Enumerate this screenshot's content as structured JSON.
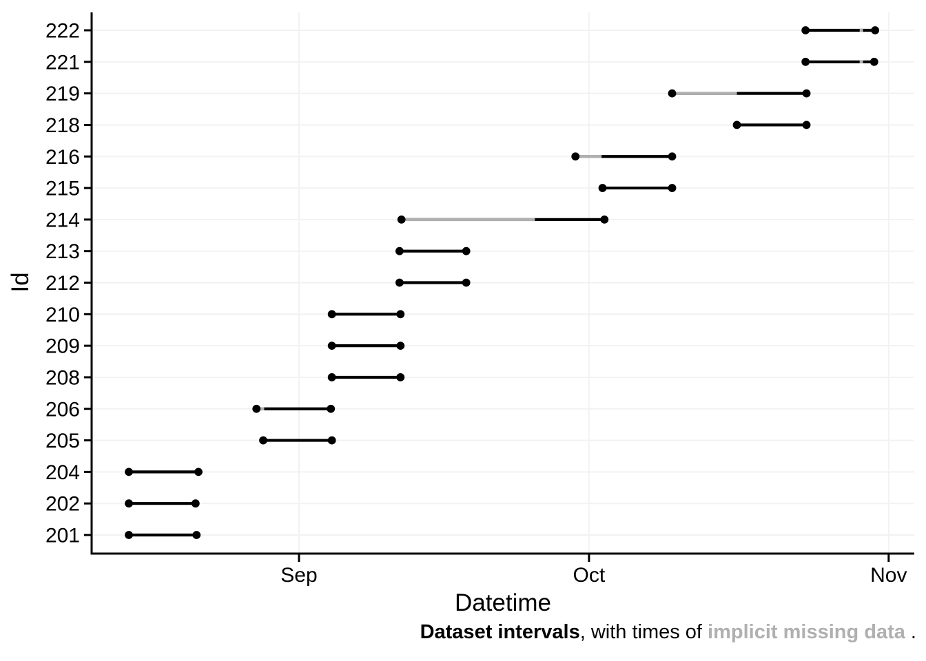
{
  "figure": {
    "xlabel": "Datetime",
    "ylabel": "Id",
    "caption": {
      "part1_bold": "Dataset intervals",
      "part2": ", with times of ",
      "part3_gray_bold": "implicit missing data",
      "part4": " ."
    }
  },
  "colors": {
    "interval": "#000000",
    "missing": "#b0b0b0",
    "gridline": "#f2f2f2",
    "axis": "#000000",
    "tick_text": "#000000",
    "background": "#ffffff",
    "caption_gray": "#b0b0b0"
  },
  "chart_data": {
    "type": "interval-range",
    "description": "Horizontal interval segments per dataset Id over time; black = data present, gray = implicit missing data; dots mark interval endpoints.",
    "title": "",
    "xlabel": "Datetime",
    "ylabel": "Id",
    "grid": "major gridlines only, very light gray on white panel",
    "legend": "none",
    "epoch_note": "day 0 = Aug 1",
    "x_domain_days": [
      9.55,
      94.65
    ],
    "x_ticks": [
      {
        "label": "Sep",
        "day": 31
      },
      {
        "label": "Oct",
        "day": 61
      },
      {
        "label": "Nov",
        "day": 92
      }
    ],
    "y_categories": [
      "222",
      "221",
      "219",
      "218",
      "216",
      "215",
      "214",
      "213",
      "212",
      "210",
      "209",
      "208",
      "206",
      "205",
      "204",
      "202",
      "201"
    ],
    "intervals": [
      {
        "id": "222",
        "start_day": 83.4,
        "end_day": 90.6,
        "start_date": "Oct 23",
        "end_date": "Oct 31",
        "missing_days": [
          [
            89.0,
            89.35
          ]
        ]
      },
      {
        "id": "221",
        "start_day": 83.4,
        "end_day": 90.5,
        "start_date": "Oct 23",
        "end_date": "Oct 31",
        "missing_days": [
          [
            89.0,
            89.35
          ]
        ]
      },
      {
        "id": "219",
        "start_day": 69.6,
        "end_day": 83.5,
        "start_date": "Oct 10",
        "end_date": "Oct 23",
        "missing_days": [
          [
            69.6,
            76.3
          ]
        ]
      },
      {
        "id": "218",
        "start_day": 76.3,
        "end_day": 83.5,
        "start_date": "Oct 16",
        "end_date": "Oct 23",
        "missing_days": []
      },
      {
        "id": "216",
        "start_day": 59.6,
        "end_day": 69.6,
        "start_date": "Sep 30",
        "end_date": "Oct 10",
        "missing_days": [
          [
            59.6,
            62.3
          ]
        ]
      },
      {
        "id": "215",
        "start_day": 62.4,
        "end_day": 69.6,
        "start_date": "Oct 2",
        "end_date": "Oct 10",
        "missing_days": []
      },
      {
        "id": "214",
        "start_day": 41.6,
        "end_day": 62.6,
        "start_date": "Sep 12",
        "end_date": "Oct 3",
        "missing_days": [
          [
            41.6,
            55.4
          ]
        ]
      },
      {
        "id": "213",
        "start_day": 41.4,
        "end_day": 48.3,
        "start_date": "Sep 11",
        "end_date": "Sep 18",
        "missing_days": []
      },
      {
        "id": "212",
        "start_day": 41.4,
        "end_day": 48.3,
        "start_date": "Sep 11",
        "end_date": "Sep 18",
        "missing_days": []
      },
      {
        "id": "210",
        "start_day": 34.4,
        "end_day": 41.5,
        "start_date": "Sep 4",
        "end_date": "Sep 11",
        "missing_days": []
      },
      {
        "id": "209",
        "start_day": 34.4,
        "end_day": 41.5,
        "start_date": "Sep 4",
        "end_date": "Sep 11",
        "missing_days": []
      },
      {
        "id": "208",
        "start_day": 34.4,
        "end_day": 41.5,
        "start_date": "Sep 4",
        "end_date": "Sep 11",
        "missing_days": []
      },
      {
        "id": "206",
        "start_day": 26.6,
        "end_day": 34.3,
        "start_date": "Aug 28",
        "end_date": "Sep 4",
        "missing_days": [
          [
            27.0,
            27.4
          ]
        ]
      },
      {
        "id": "205",
        "start_day": 27.3,
        "end_day": 34.4,
        "start_date": "Aug 28",
        "end_date": "Sep 4",
        "missing_days": []
      },
      {
        "id": "204",
        "start_day": 13.4,
        "end_day": 20.6,
        "start_date": "Aug 14",
        "end_date": "Aug 22",
        "missing_days": []
      },
      {
        "id": "202",
        "start_day": 13.4,
        "end_day": 20.3,
        "start_date": "Aug 14",
        "end_date": "Aug 21",
        "missing_days": []
      },
      {
        "id": "201",
        "start_day": 13.4,
        "end_day": 20.4,
        "start_date": "Aug 14",
        "end_date": "Aug 21",
        "missing_days": []
      }
    ]
  }
}
